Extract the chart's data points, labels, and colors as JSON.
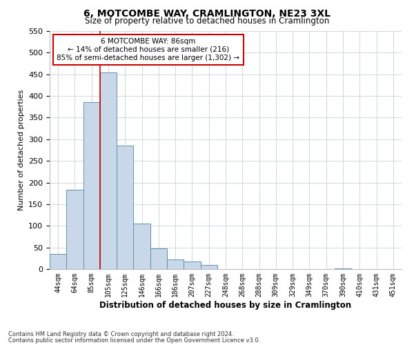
{
  "title": "6, MOTCOMBE WAY, CRAMLINGTON, NE23 3XL",
  "subtitle": "Size of property relative to detached houses in Cramlington",
  "xlabel": "Distribution of detached houses by size in Cramlington",
  "ylabel": "Number of detached properties",
  "bin_labels": [
    "44sqm",
    "64sqm",
    "85sqm",
    "105sqm",
    "125sqm",
    "146sqm",
    "166sqm",
    "186sqm",
    "207sqm",
    "227sqm",
    "248sqm",
    "268sqm",
    "288sqm",
    "309sqm",
    "329sqm",
    "349sqm",
    "370sqm",
    "390sqm",
    "410sqm",
    "431sqm",
    "451sqm"
  ],
  "bar_values": [
    35,
    183,
    385,
    455,
    285,
    105,
    48,
    22,
    18,
    10,
    0,
    0,
    0,
    0,
    0,
    0,
    0,
    2,
    0,
    0,
    0
  ],
  "bar_color": "#c8d8e8",
  "bar_edge_color": "#6090b0",
  "property_line_color": "#cc0000",
  "ylim": [
    0,
    550
  ],
  "yticks": [
    0,
    50,
    100,
    150,
    200,
    250,
    300,
    350,
    400,
    450,
    500,
    550
  ],
  "annotation_title": "6 MOTCOMBE WAY: 86sqm",
  "annotation_line1": "← 14% of detached houses are smaller (216)",
  "annotation_line2": "85% of semi-detached houses are larger (1,302) →",
  "annotation_box_color": "#ffffff",
  "annotation_box_edge": "#cc0000",
  "footnote1": "Contains HM Land Registry data © Crown copyright and database right 2024.",
  "footnote2": "Contains public sector information licensed under the Open Government Licence v3.0.",
  "background_color": "#ffffff",
  "grid_color": "#d0d8e0"
}
